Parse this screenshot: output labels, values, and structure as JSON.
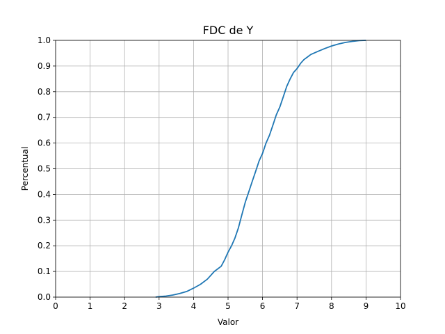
{
  "chart_data": {
    "type": "line",
    "title": "FDC de Y",
    "xlabel": "Valor",
    "ylabel": "Percentual",
    "xlim": [
      0,
      10
    ],
    "ylim": [
      0,
      1.0
    ],
    "xticks": [
      "0",
      "1",
      "2",
      "3",
      "4",
      "5",
      "6",
      "7",
      "8",
      "9",
      "10"
    ],
    "yticks": [
      "0.0",
      "0.1",
      "0.2",
      "0.3",
      "0.4",
      "0.5",
      "0.6",
      "0.7",
      "0.8",
      "0.9",
      "1.0"
    ],
    "grid": true,
    "line_color": "#1f77b4",
    "series": [
      {
        "x": [
          2.9,
          3.0,
          3.2,
          3.4,
          3.6,
          3.8,
          4.0,
          4.2,
          4.4,
          4.6,
          4.8,
          4.9,
          5.0,
          5.1,
          5.2,
          5.3,
          5.4,
          5.5,
          5.6,
          5.7,
          5.8,
          5.9,
          6.0,
          6.1,
          6.2,
          6.3,
          6.4,
          6.5,
          6.6,
          6.7,
          6.8,
          6.9,
          7.0,
          7.1,
          7.2,
          7.3,
          7.4,
          7.6,
          7.8,
          8.0,
          8.2,
          8.4,
          8.6,
          8.8,
          9.0
        ],
        "y": [
          0.0,
          0.002,
          0.004,
          0.008,
          0.014,
          0.022,
          0.035,
          0.05,
          0.07,
          0.1,
          0.12,
          0.145,
          0.175,
          0.2,
          0.23,
          0.27,
          0.32,
          0.37,
          0.41,
          0.45,
          0.49,
          0.53,
          0.56,
          0.6,
          0.63,
          0.67,
          0.71,
          0.74,
          0.78,
          0.82,
          0.85,
          0.875,
          0.89,
          0.91,
          0.925,
          0.935,
          0.945,
          0.957,
          0.968,
          0.978,
          0.986,
          0.992,
          0.996,
          0.999,
          1.0
        ]
      }
    ]
  }
}
